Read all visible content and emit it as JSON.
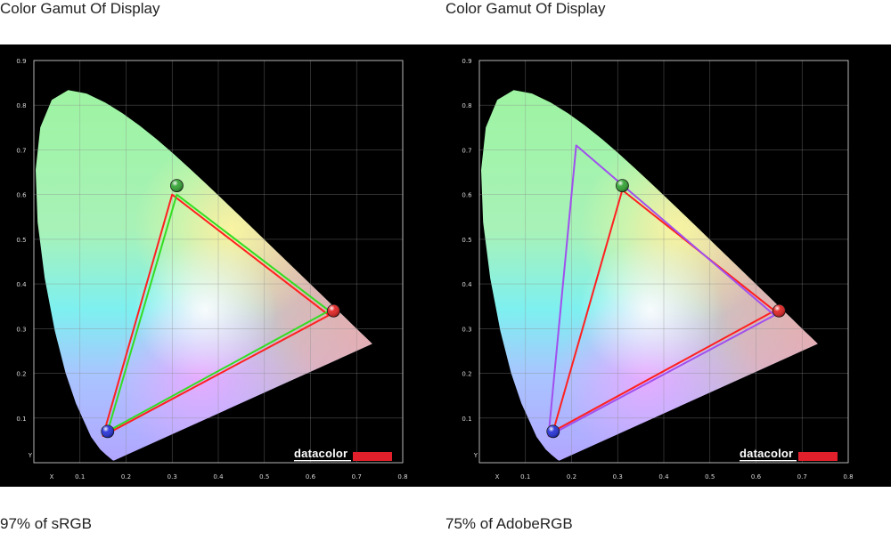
{
  "chart_data": [
    {
      "type": "scatter",
      "title": "Color Gamut Of Display",
      "caption": "97% of sRGB",
      "xlabel": "X",
      "ylabel": "Y",
      "xlim": [
        0,
        0.8
      ],
      "ylim": [
        0,
        0.9
      ],
      "xticks": [
        "0.1",
        "0.2",
        "0.3",
        "0.4",
        "0.5",
        "0.6",
        "0.7",
        "0.8"
      ],
      "yticks": [
        "0.1",
        "0.2",
        "0.3",
        "0.4",
        "0.5",
        "0.6",
        "0.7",
        "0.8",
        "0.9"
      ],
      "grid": true,
      "brand": "datacolor",
      "brand_accent": "#e2202b",
      "gamuts": [
        {
          "color": "#ff2020",
          "points": [
            [
              0.64,
              0.33
            ],
            [
              0.3,
              0.6
            ],
            [
              0.15,
              0.06
            ]
          ]
        },
        {
          "color": "#33dd22",
          "points": [
            [
              0.64,
              0.34
            ],
            [
              0.31,
              0.6
            ],
            [
              0.16,
              0.07
            ]
          ]
        }
      ],
      "primaries": [
        {
          "color": "#e01818",
          "x": 0.65,
          "y": 0.34
        },
        {
          "color": "#2aa02a",
          "x": 0.31,
          "y": 0.62
        },
        {
          "color": "#1a28d8",
          "x": 0.16,
          "y": 0.07
        }
      ]
    },
    {
      "type": "scatter",
      "title": "Color Gamut Of Display",
      "caption": "75% of AdobeRGB",
      "xlabel": "X",
      "ylabel": "Y",
      "xlim": [
        0,
        0.8
      ],
      "ylim": [
        0,
        0.9
      ],
      "xticks": [
        "0.1",
        "0.2",
        "0.3",
        "0.4",
        "0.5",
        "0.6",
        "0.7",
        "0.8"
      ],
      "yticks": [
        "0.1",
        "0.2",
        "0.3",
        "0.4",
        "0.5",
        "0.6",
        "0.7",
        "0.8",
        "0.9"
      ],
      "grid": true,
      "brand": "datacolor",
      "brand_accent": "#e2202b",
      "gamuts": [
        {
          "color": "#ff2020",
          "points": [
            [
              0.64,
              0.34
            ],
            [
              0.31,
              0.61
            ],
            [
              0.16,
              0.07
            ]
          ]
        },
        {
          "color": "#a050ee",
          "points": [
            [
              0.64,
              0.33
            ],
            [
              0.21,
              0.71
            ],
            [
              0.15,
              0.06
            ]
          ]
        }
      ],
      "primaries": [
        {
          "color": "#e01818",
          "x": 0.65,
          "y": 0.34
        },
        {
          "color": "#2aa02a",
          "x": 0.31,
          "y": 0.62
        },
        {
          "color": "#1a28d8",
          "x": 0.16,
          "y": 0.07
        }
      ]
    }
  ]
}
